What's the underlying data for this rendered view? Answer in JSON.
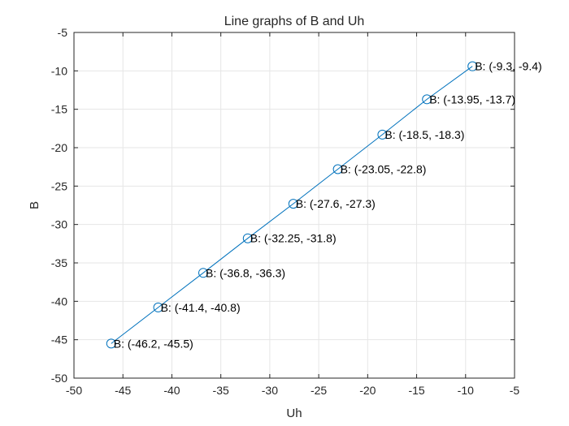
{
  "chart_data": {
    "type": "line",
    "title": "Line graphs of B and Uh",
    "xlabel": "Uh",
    "ylabel": "B",
    "xlim": [
      -50,
      -5
    ],
    "ylim": [
      -50,
      -5
    ],
    "xticks": [
      -50,
      -45,
      -40,
      -35,
      -30,
      -25,
      -20,
      -15,
      -10,
      -5
    ],
    "yticks": [
      -50,
      -45,
      -40,
      -35,
      -30,
      -25,
      -20,
      -15,
      -10,
      -5
    ],
    "grid": true,
    "box": true,
    "marker": "circle",
    "colors": {
      "series": "#0072BD",
      "grid": "#e6e6e6",
      "axes": "#262626"
    },
    "series": [
      {
        "x": [
          -46.2,
          -41.4,
          -36.8,
          -32.25,
          -27.6,
          -23.05,
          -18.5,
          -13.95,
          -9.3
        ],
        "y": [
          -45.5,
          -40.8,
          -36.3,
          -31.8,
          -27.3,
          -22.8,
          -18.3,
          -13.7,
          -9.4
        ]
      }
    ],
    "annotations": [
      "B: (-46.2, -45.5)",
      "B: (-41.4, -40.8)",
      "B: (-36.8, -36.3)",
      "B: (-32.25, -31.8)",
      "B: (-27.6, -27.3)",
      "B: (-23.05, -22.8)",
      "B: (-18.5, -18.3)",
      "B: (-13.95, -13.7)",
      "B: (-9.3, -9.4)"
    ]
  }
}
